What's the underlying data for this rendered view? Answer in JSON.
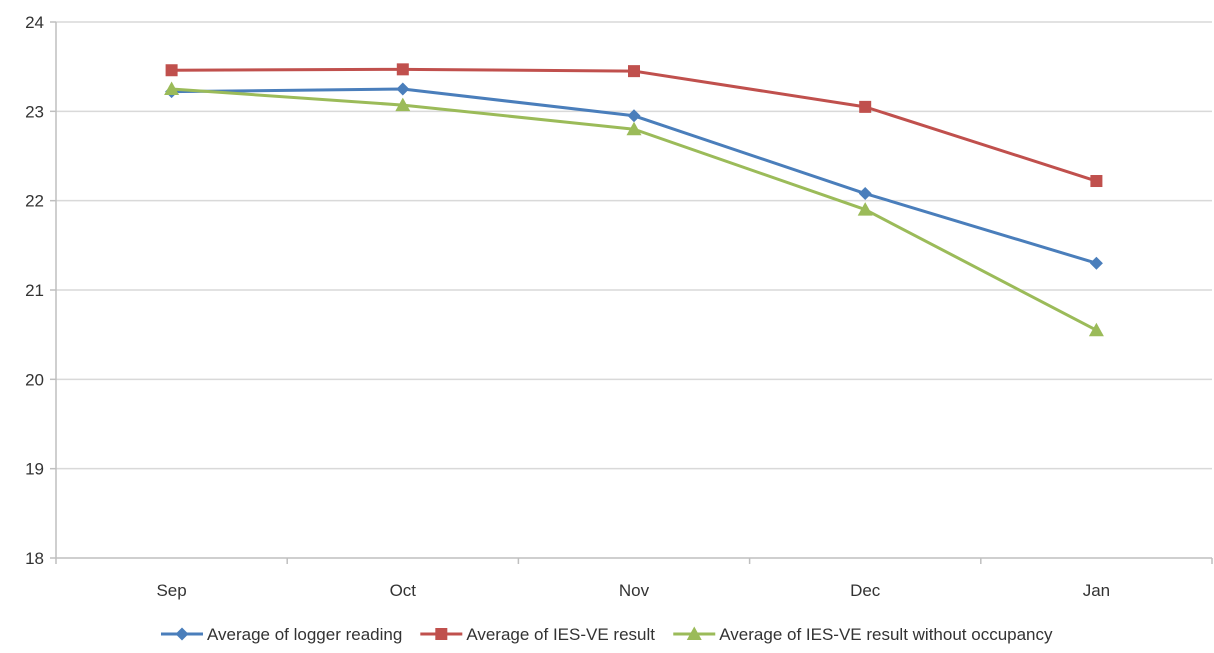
{
  "chart_data": {
    "type": "line",
    "title": "",
    "xlabel": "",
    "ylabel": "",
    "categories": [
      "Sep",
      "Oct",
      "Nov",
      "Dec",
      "Jan"
    ],
    "ylim": [
      18,
      24
    ],
    "yticks": [
      "18",
      "19",
      "20",
      "21",
      "22",
      "23",
      "24"
    ],
    "grid": "horizontal",
    "legend_position": "bottom",
    "series": [
      {
        "name": "Average of logger reading",
        "values": [
          23.22,
          23.25,
          22.95,
          22.08,
          21.3
        ],
        "color": "#4a7ebb",
        "marker": "diamond"
      },
      {
        "name": "Average of IES-VE result",
        "values": [
          23.46,
          23.47,
          23.45,
          23.05,
          22.22
        ],
        "color": "#c0504d",
        "marker": "square"
      },
      {
        "name": "Average of IES-VE result without occupancy",
        "values": [
          23.25,
          23.07,
          22.8,
          21.9,
          20.55
        ],
        "color": "#9bbb59",
        "marker": "triangle"
      }
    ]
  }
}
